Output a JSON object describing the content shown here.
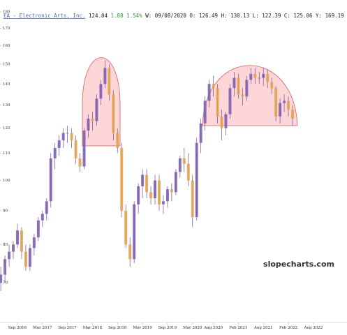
{
  "chart_data": {
    "type": "candlestick",
    "header": {
      "name": "EA - Electronic Arts, Inc.",
      "last": "124.04",
      "change": "1.88 1.54%",
      "details": "W: 09/08/2020 O: 126.49 H: 130.13 L: 122.39 C: 125.06 Y: 169.19"
    },
    "watermark": "slopecharts.com",
    "log_scale": true,
    "up_color": "#7a5cb0",
    "down_color": "#e3a24a",
    "wick_color": "#6a4fa0",
    "ylim": [
      62,
      180
    ],
    "yticks": [
      70,
      80,
      90,
      100,
      110,
      120,
      130,
      140,
      150,
      160,
      170,
      180
    ],
    "xticks": [
      {
        "value": "2016-09",
        "label": "Sep 2016"
      },
      {
        "value": "2017-03",
        "label": "Mar 2017"
      },
      {
        "value": "2017-09",
        "label": "Sep 2017"
      },
      {
        "value": "2018-03",
        "label": "Mar 2018"
      },
      {
        "value": "2018-09",
        "label": "Sep 2018"
      },
      {
        "value": "2019-03",
        "label": "Mar 2019"
      },
      {
        "value": "2019-09",
        "label": "Sep 2019"
      },
      {
        "value": "2020-03",
        "label": "Mar 2020"
      },
      {
        "value": "2020-08",
        "label": "Aug 2020"
      },
      {
        "value": "2021-02",
        "label": "Feb 2021"
      },
      {
        "value": "2021-08",
        "label": "Aug 2021"
      },
      {
        "value": "2022-02",
        "label": "Feb 2022"
      },
      {
        "value": "2022-08",
        "label": "Aug 2022"
      }
    ],
    "x": [
      "2016-05",
      "2016-06",
      "2016-07",
      "2016-08",
      "2016-09",
      "2016-10",
      "2016-11",
      "2016-12",
      "2017-01",
      "2017-02",
      "2017-03",
      "2017-04",
      "2017-05",
      "2017-06",
      "2017-07",
      "2017-08",
      "2017-09",
      "2017-10",
      "2017-11",
      "2017-12",
      "2018-01",
      "2018-02",
      "2018-03",
      "2018-04",
      "2018-05",
      "2018-06",
      "2018-07",
      "2018-08",
      "2018-09",
      "2018-10",
      "2018-11",
      "2018-12",
      "2019-01",
      "2019-02",
      "2019-03",
      "2019-04",
      "2019-05",
      "2019-06",
      "2019-07",
      "2019-08",
      "2019-09",
      "2019-10",
      "2019-11",
      "2019-12",
      "2020-01",
      "2020-02",
      "2020-03",
      "2020-04",
      "2020-05",
      "2020-06",
      "2020-07",
      "2020-08",
      "2020-09",
      "2020-10",
      "2020-11",
      "2020-12",
      "2021-01",
      "2021-02",
      "2021-03",
      "2021-04",
      "2021-05",
      "2021-06",
      "2021-07",
      "2021-08",
      "2021-09",
      "2021-10",
      "2021-11",
      "2021-12",
      "2022-01",
      "2022-02",
      "2022-03"
    ],
    "open": [
      70,
      72,
      76,
      78,
      80,
      84,
      78,
      74,
      79,
      82,
      87,
      89,
      93,
      108,
      112,
      115,
      118,
      118,
      115,
      108,
      105,
      119,
      124,
      123,
      133,
      140,
      148,
      135,
      118,
      112,
      90,
      80,
      76,
      92,
      98,
      102,
      96,
      94,
      100,
      92,
      93,
      97,
      96,
      103,
      108,
      106,
      100,
      88,
      114,
      122,
      132,
      140,
      138,
      125,
      120,
      126,
      138,
      143,
      135,
      134,
      142,
      145,
      143,
      143,
      145,
      141,
      138,
      125,
      131,
      132,
      128
    ],
    "high": [
      74,
      77,
      80,
      81,
      86,
      85,
      80,
      80,
      83,
      88,
      90,
      94,
      110,
      114,
      117,
      120,
      121,
      120,
      117,
      110,
      120,
      126,
      127,
      135,
      142,
      152,
      150,
      137,
      120,
      114,
      92,
      82,
      93,
      99,
      104,
      104,
      98,
      102,
      102,
      95,
      98,
      99,
      104,
      109,
      112,
      110,
      102,
      116,
      124,
      134,
      142,
      144,
      140,
      128,
      127,
      140,
      146,
      145,
      138,
      144,
      148,
      148,
      146,
      148,
      147,
      143,
      139,
      133,
      135,
      134,
      130
    ],
    "low": [
      68,
      70,
      74,
      76,
      79,
      76,
      73,
      73,
      77,
      81,
      85,
      87,
      91,
      104,
      109,
      112,
      114,
      112,
      106,
      103,
      104,
      116,
      119,
      121,
      130,
      138,
      132,
      115,
      110,
      88,
      79,
      74,
      75,
      89,
      94,
      94,
      92,
      92,
      90,
      89,
      91,
      93,
      95,
      101,
      103,
      98,
      85,
      87,
      110,
      119,
      129,
      134,
      122,
      115,
      117,
      124,
      134,
      133,
      130,
      132,
      140,
      140,
      140,
      139,
      138,
      135,
      123,
      122,
      127,
      125,
      121
    ],
    "close": [
      72,
      76,
      78,
      80,
      84,
      78,
      74,
      79,
      82,
      87,
      89,
      93,
      108,
      112,
      115,
      118,
      118,
      115,
      108,
      105,
      119,
      124,
      123,
      133,
      140,
      148,
      135,
      118,
      112,
      90,
      80,
      76,
      92,
      98,
      102,
      96,
      94,
      100,
      92,
      93,
      97,
      96,
      103,
      108,
      106,
      100,
      88,
      114,
      122,
      132,
      140,
      138,
      125,
      120,
      126,
      138,
      143,
      135,
      134,
      142,
      145,
      143,
      143,
      145,
      141,
      138,
      125,
      131,
      132,
      128,
      124
    ]
  }
}
